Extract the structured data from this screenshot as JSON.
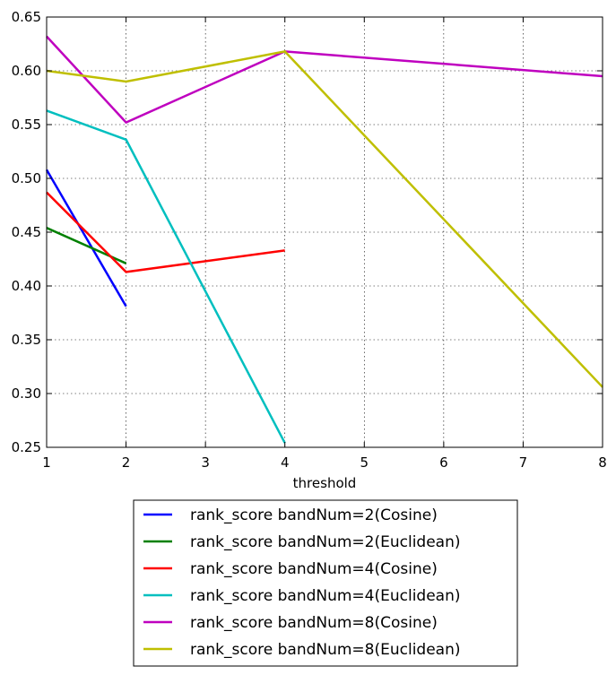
{
  "chart_data": {
    "type": "line",
    "title": "",
    "xlabel": "threshold",
    "ylabel": "",
    "xlim": [
      1,
      8
    ],
    "ylim": [
      0.25,
      0.65
    ],
    "xticks": [
      1,
      2,
      3,
      4,
      5,
      6,
      7,
      8
    ],
    "yticks": [
      0.25,
      0.3,
      0.35,
      0.4,
      0.45,
      0.5,
      0.55,
      0.6,
      0.65
    ],
    "ytick_labels": [
      "0.25",
      "0.30",
      "0.35",
      "0.40",
      "0.45",
      "0.50",
      "0.55",
      "0.60",
      "0.65"
    ],
    "grid": true,
    "legend_position": "below plot",
    "series": [
      {
        "name": "rank_score bandNum=2(Cosine)",
        "color": "#0000ff",
        "points": [
          [
            1,
            0.508
          ],
          [
            2,
            0.381
          ]
        ]
      },
      {
        "name": "rank_score bandNum=2(Euclidean)",
        "color": "#008000",
        "points": [
          [
            1,
            0.454
          ],
          [
            2,
            0.421
          ]
        ]
      },
      {
        "name": "rank_score bandNum=4(Cosine)",
        "color": "#ff0000",
        "points": [
          [
            1,
            0.487
          ],
          [
            2,
            0.413
          ],
          [
            4,
            0.433
          ]
        ]
      },
      {
        "name": "rank_score bandNum=4(Euclidean)",
        "color": "#00bfbf",
        "points": [
          [
            1,
            0.563
          ],
          [
            2,
            0.536
          ],
          [
            4,
            0.254
          ]
        ]
      },
      {
        "name": "rank_score bandNum=8(Cosine)",
        "color": "#bf00bf",
        "points": [
          [
            1,
            0.632
          ],
          [
            2,
            0.552
          ],
          [
            4,
            0.618
          ],
          [
            8,
            0.595
          ]
        ]
      },
      {
        "name": "rank_score bandNum=8(Euclidean)",
        "color": "#bfbf00",
        "points": [
          [
            1,
            0.6
          ],
          [
            2,
            0.59
          ],
          [
            4,
            0.618
          ],
          [
            8,
            0.306
          ]
        ]
      }
    ]
  }
}
